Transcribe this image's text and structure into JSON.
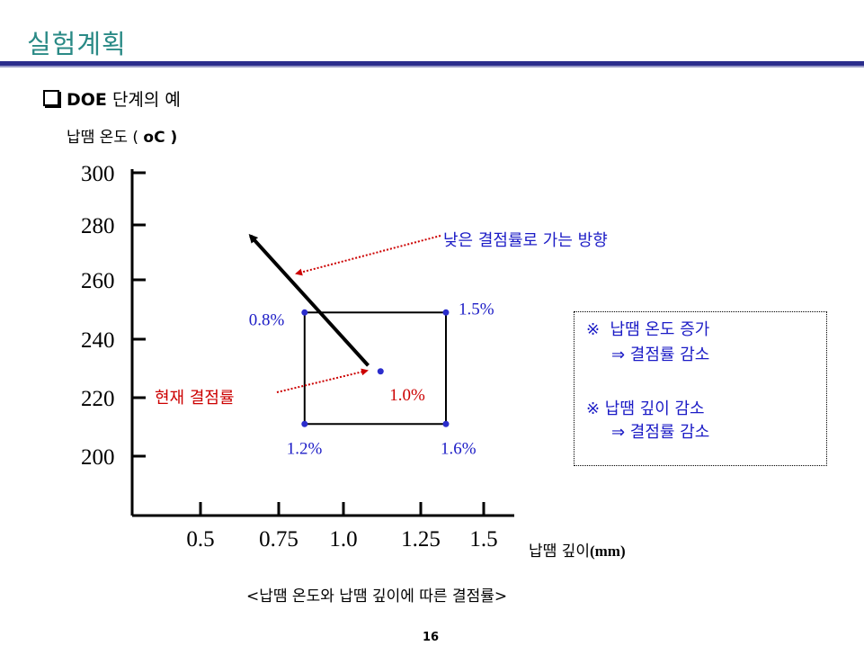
{
  "page": {
    "title": "실험계획",
    "section_label": "DOE",
    "section_rest": " 단계의 예",
    "caption": "<납땜 온도와 납땜 깊이에 따른 결점률>",
    "page_number": "16"
  },
  "chart_data": {
    "type": "scatter",
    "ylabel_prefix": "납땜 온도 ( ",
    "ylabel_unit": "oC )",
    "xlabel_prefix": "납땜 깊이",
    "xlabel_unit": "(mm)",
    "x_ticks": [
      0.5,
      0.75,
      1.0,
      1.25,
      1.5
    ],
    "x_tick_labels": [
      "0.5",
      "0.75",
      "1.0",
      "1.25",
      "1.5"
    ],
    "y_ticks": [
      200,
      220,
      240,
      260,
      280,
      300
    ],
    "y_tick_labels": [
      "200",
      "220",
      "240",
      "260",
      "280",
      "300"
    ],
    "points": [
      {
        "x": 0.85,
        "y": 249,
        "label": "0.8%",
        "color": "#1c1cc6"
      },
      {
        "x": 1.35,
        "y": 249,
        "label": "1.5%",
        "color": "#1c1cc6"
      },
      {
        "x": 0.85,
        "y": 211,
        "label": "1.2%",
        "color": "#1c1cc6"
      },
      {
        "x": 1.35,
        "y": 211,
        "label": "1.6%",
        "color": "#1c1cc6"
      },
      {
        "x": 1.12,
        "y": 229,
        "label": "1.0%",
        "color": "#cc0000"
      }
    ],
    "design_box": {
      "x": [
        0.85,
        1.35
      ],
      "y": [
        211,
        249
      ]
    },
    "direction_arrow": {
      "from": {
        "x": 1.08,
        "y": 231
      },
      "to": {
        "x": 0.66,
        "y": 276
      }
    },
    "annotations": {
      "direction_text": "낮은 결점률로 가는 방향",
      "current_text": "현재 결점률"
    },
    "colors": {
      "blue": "#1c1cc6",
      "red": "#cc0000",
      "teal": "#2a8a86",
      "navy": "#2b2d8c"
    }
  },
  "notes": {
    "line1": "※  납땜 온도 증가",
    "line2": "⇒ 결점률 감소",
    "line3": "※ 납땜 깊이 감소",
    "line4": "⇒ 결점률 감소"
  }
}
